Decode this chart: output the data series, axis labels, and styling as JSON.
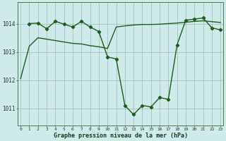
{
  "line1_x": [
    0,
    1,
    2,
    3,
    4,
    5,
    6,
    7,
    8,
    9,
    10,
    11,
    12,
    13,
    14,
    15,
    16,
    17,
    18,
    19,
    20,
    21,
    22,
    23
  ],
  "line1_y": [
    1012.05,
    1013.2,
    1013.5,
    1013.45,
    1013.4,
    1013.35,
    1013.3,
    1013.28,
    1013.22,
    1013.18,
    1013.12,
    1013.88,
    1013.92,
    1013.95,
    1013.97,
    1013.97,
    1013.98,
    1014.0,
    1014.02,
    1014.05,
    1014.08,
    1014.1,
    1014.07,
    1014.04
  ],
  "line2_x": [
    1,
    2,
    3,
    4,
    5,
    6,
    7,
    8,
    9,
    10,
    11,
    12,
    13,
    14,
    15,
    16,
    17,
    18,
    19,
    20,
    21,
    22,
    23
  ],
  "line2_y": [
    1014.0,
    1014.02,
    1013.82,
    1014.08,
    1013.98,
    1013.88,
    1014.08,
    1013.88,
    1013.72,
    1012.82,
    1012.75,
    1011.1,
    1010.78,
    1011.1,
    1011.05,
    1011.38,
    1011.32,
    1013.25,
    1014.12,
    1014.16,
    1014.2,
    1013.85,
    1013.78
  ],
  "line_color": "#1a5e1a",
  "bg_color": "#ceeaea",
  "grid_color": "#a0b8b8",
  "xlabel": "Graphe pression niveau de la mer (hPa)",
  "ylim": [
    1010.4,
    1014.75
  ],
  "yticks": [
    1011,
    1012,
    1013,
    1014
  ],
  "xticks": [
    0,
    1,
    2,
    3,
    4,
    5,
    6,
    7,
    8,
    9,
    10,
    11,
    12,
    13,
    14,
    15,
    16,
    17,
    18,
    19,
    20,
    21,
    22,
    23
  ],
  "marker": "D",
  "marker_size": 2.2,
  "linewidth": 1.0
}
